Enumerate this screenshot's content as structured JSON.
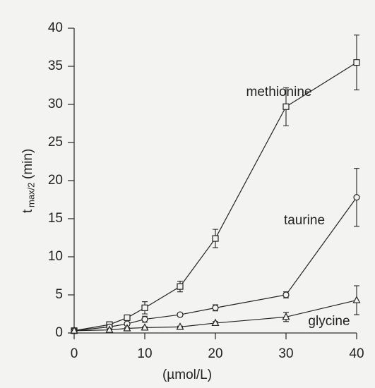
{
  "chart_data": {
    "type": "line",
    "ylabel": {
      "main": "t",
      "sub": "max/2",
      "unit": "(min)"
    },
    "xlabel": "(µmol/L)",
    "x": [
      0,
      5,
      7.5,
      10,
      15,
      20,
      30,
      40
    ],
    "series": [
      {
        "name": "methionine",
        "color": "#222222",
        "marker": "square",
        "values": [
          0.3,
          1.1,
          2.0,
          3.3,
          6.1,
          12.4,
          29.7,
          35.5
        ],
        "errors": [
          0.1,
          0.2,
          0.3,
          0.8,
          0.7,
          1.2,
          2.5,
          3.6
        ]
      },
      {
        "name": "taurine",
        "color": "#222222",
        "marker": "circle",
        "values": [
          0.3,
          0.8,
          1.2,
          1.8,
          2.4,
          3.3,
          5.0,
          17.8
        ],
        "errors": [
          0.1,
          0.1,
          0.2,
          0.4,
          0.2,
          0.4,
          0.4,
          3.8
        ]
      },
      {
        "name": "glycine",
        "color": "#222222",
        "marker": "triangle",
        "values": [
          0.3,
          0.4,
          0.6,
          0.7,
          0.8,
          1.3,
          2.1,
          4.3
        ],
        "errors": [
          0.1,
          0.1,
          0.1,
          0.1,
          0.1,
          0.2,
          0.6,
          1.9
        ]
      }
    ],
    "xlim": [
      0,
      40
    ],
    "xticks": [
      0,
      10,
      20,
      30,
      40
    ],
    "ylim": [
      0,
      40
    ],
    "yticks": [
      0,
      5,
      10,
      15,
      20,
      25,
      30,
      35,
      40
    ]
  }
}
